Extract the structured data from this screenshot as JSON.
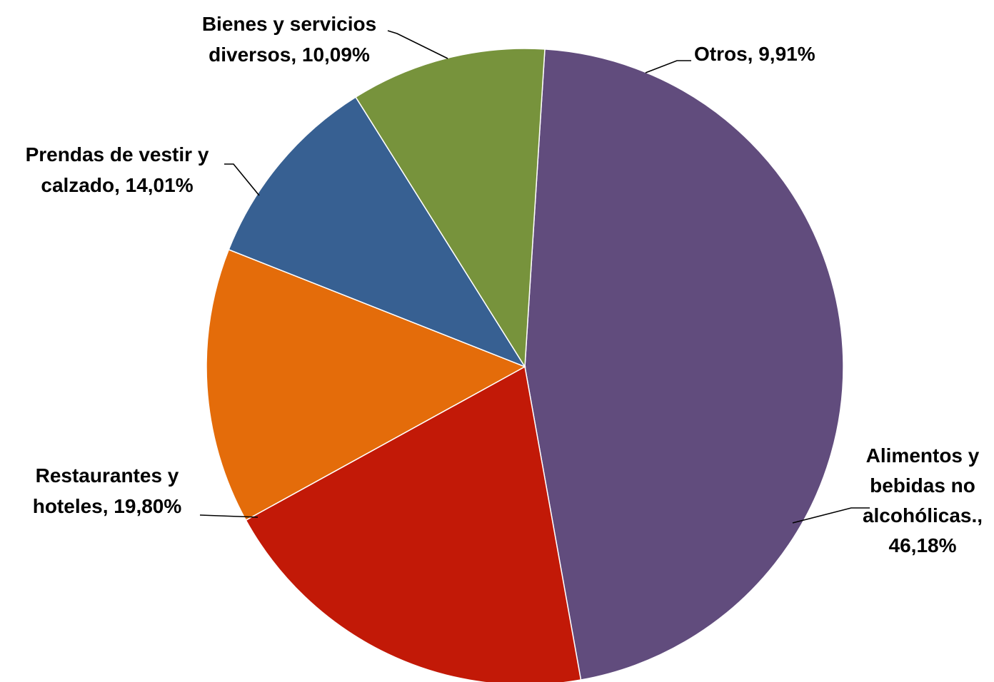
{
  "chart_data": {
    "type": "pie",
    "title": "",
    "start_angle_deg": 3.6,
    "direction": "clockwise",
    "slices": [
      {
        "category": "Alimentos y bebidas no alcohólicas.",
        "value": 46.18,
        "label_lines": [
          "Alimentos y",
          "bebidas no",
          "alcohólicas.,",
          "46,18%"
        ],
        "color": "#614C7D"
      },
      {
        "category": "Restaurantes y hoteles",
        "value": 19.8,
        "label_lines": [
          "Restaurantes y",
          "hoteles, 19,80%"
        ],
        "color": "#C21907"
      },
      {
        "category": "Prendas de vestir y calzado",
        "value": 14.01,
        "label_lines": [
          "Prendas de vestir y",
          "calzado, 14,01%"
        ],
        "color": "#E46C0A"
      },
      {
        "category": "Bienes y servicios diversos",
        "value": 10.09,
        "label_lines": [
          "Bienes y servicios",
          "diversos, 10,09%"
        ],
        "color": "#376092"
      },
      {
        "category": "Otros",
        "value": 9.91,
        "label_lines": [
          "Otros, 9,91%"
        ],
        "color": "#77933C"
      }
    ]
  }
}
